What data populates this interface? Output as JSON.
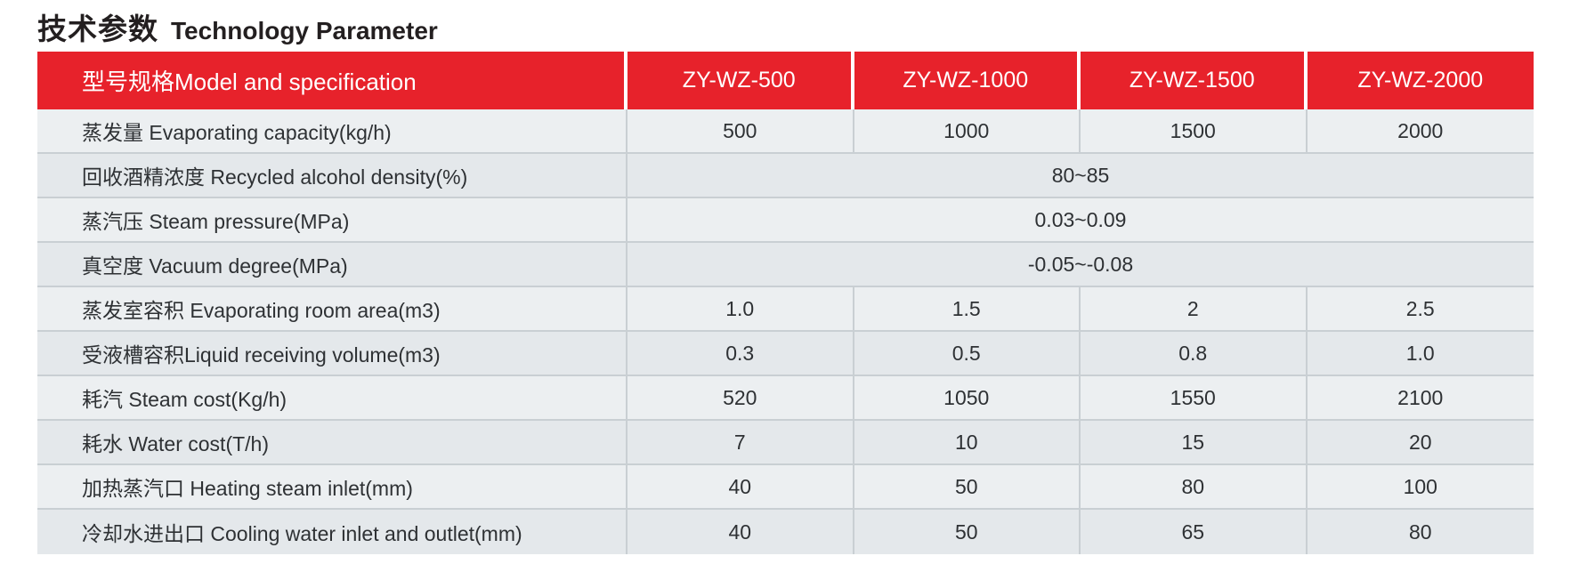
{
  "title": {
    "zh": "技术参数",
    "en": "Technology Parameter"
  },
  "table": {
    "header": {
      "label": "型号规格Model and specification",
      "models": [
        "ZY-WZ-500",
        "ZY-WZ-1000",
        "ZY-WZ-1500",
        "ZY-WZ-2000"
      ]
    },
    "rows": [
      {
        "label": "蒸发量 Evaporating capacity(kg/h)",
        "values": [
          "500",
          "1000",
          "1500",
          "2000"
        ]
      },
      {
        "label": "回收酒精浓度 Recycled alcohol density(%)",
        "values": [
          "80~85"
        ],
        "merged": true
      },
      {
        "label": "蒸汽压 Steam pressure(MPa)",
        "values": [
          "0.03~0.09"
        ],
        "merged": true
      },
      {
        "label": "真空度 Vacuum degree(MPa)",
        "values": [
          "-0.05~-0.08"
        ],
        "merged": true
      },
      {
        "label": "蒸发室容积 Evaporating room area(m3)",
        "values": [
          "1.0",
          "1.5",
          "2",
          "2.5"
        ]
      },
      {
        "label": "受液槽容积Liquid receiving volume(m3)",
        "values": [
          "0.3",
          "0.5",
          "0.8",
          "1.0"
        ]
      },
      {
        "label": "耗汽 Steam cost(Kg/h)",
        "values": [
          "520",
          "1050",
          "1550",
          "2100"
        ]
      },
      {
        "label": "耗水 Water cost(T/h)",
        "values": [
          "7",
          "10",
          "15",
          "20"
        ]
      },
      {
        "label": "加热蒸汽口 Heating steam inlet(mm)",
        "values": [
          "40",
          "50",
          "80",
          "100"
        ]
      },
      {
        "label": "冷却水进出口 Cooling water inlet and outlet(mm)",
        "values": [
          "40",
          "50",
          "65",
          "80"
        ]
      }
    ]
  },
  "colors": {
    "header_bg": "#e7222b",
    "header_text": "#ffffff",
    "row_light": "#eceff1",
    "row_dark": "#e4e8eb",
    "grid_line": "#c9cfd3",
    "body_text": "#2e3134",
    "title_text": "#231f20"
  }
}
